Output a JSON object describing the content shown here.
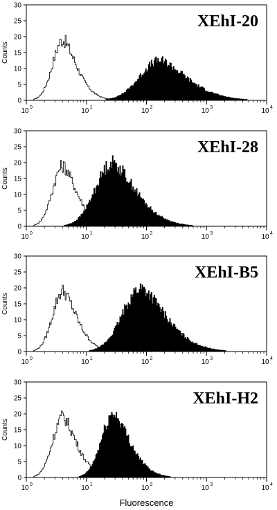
{
  "chart_data": [
    {
      "type": "histogram",
      "title": "XEhI-20",
      "ylabel": "Counts",
      "xlabel": "",
      "xscale": "log",
      "xlim": [
        1,
        10000
      ],
      "ylim": [
        0,
        30
      ],
      "yticks": [
        "0",
        "5",
        "10",
        "15",
        "20",
        "25",
        "30"
      ],
      "xticks": [
        {
          "base": "10",
          "exp": "0"
        },
        {
          "base": "10",
          "exp": "1"
        },
        {
          "base": "10",
          "exp": "2"
        },
        {
          "base": "10",
          "exp": "3"
        },
        {
          "base": "10",
          "exp": "4"
        }
      ],
      "series": [
        {
          "style": "outline",
          "peak_x": 4,
          "peak_count": 19,
          "log_width": 0.17
        },
        {
          "style": "filled",
          "peak_x": 165,
          "peak_count": 12.5,
          "log_width": 0.33
        }
      ]
    },
    {
      "type": "histogram",
      "title": "XEhI-28",
      "ylabel": "Counts",
      "xlabel": "",
      "xscale": "log",
      "xlim": [
        1,
        10000
      ],
      "ylim": [
        0,
        30
      ],
      "yticks": [
        "0",
        "5",
        "10",
        "15",
        "20",
        "25",
        "30"
      ],
      "xticks": [
        {
          "base": "10",
          "exp": "0"
        },
        {
          "base": "10",
          "exp": "1"
        },
        {
          "base": "10",
          "exp": "2"
        },
        {
          "base": "10",
          "exp": "3"
        },
        {
          "base": "10",
          "exp": "4"
        }
      ],
      "series": [
        {
          "style": "outline",
          "peak_x": 4,
          "peak_count": 19,
          "log_width": 0.17
        },
        {
          "style": "filled",
          "peak_x": 27,
          "peak_count": 20,
          "log_width": 0.28
        }
      ]
    },
    {
      "type": "histogram",
      "title": "XEhI-B5",
      "ylabel": "Counts",
      "xlabel": "",
      "xscale": "log",
      "xlim": [
        1,
        10000
      ],
      "ylim": [
        0,
        30
      ],
      "yticks": [
        "0",
        "5",
        "10",
        "15",
        "20",
        "25",
        "30"
      ],
      "xticks": [
        {
          "base": "10",
          "exp": "0"
        },
        {
          "base": "10",
          "exp": "1"
        },
        {
          "base": "10",
          "exp": "2"
        },
        {
          "base": "10",
          "exp": "3"
        },
        {
          "base": "10",
          "exp": "4"
        }
      ],
      "series": [
        {
          "style": "outline",
          "peak_x": 4,
          "peak_count": 19,
          "log_width": 0.17
        },
        {
          "style": "filled",
          "peak_x": 80,
          "peak_count": 20,
          "log_width": 0.3
        }
      ]
    },
    {
      "type": "histogram",
      "title": "XEhI-H2",
      "ylabel": "Counts",
      "xlabel": "Fluorescence",
      "xscale": "log",
      "xlim": [
        1,
        10000
      ],
      "ylim": [
        0,
        30
      ],
      "yticks": [
        "0",
        "5",
        "10",
        "15",
        "20",
        "25",
        "30"
      ],
      "xticks": [
        {
          "base": "10",
          "exp": "0"
        },
        {
          "base": "10",
          "exp": "1"
        },
        {
          "base": "10",
          "exp": "2"
        },
        {
          "base": "10",
          "exp": "3"
        },
        {
          "base": "10",
          "exp": "4"
        }
      ],
      "series": [
        {
          "style": "outline",
          "peak_x": 4,
          "peak_count": 19,
          "log_width": 0.17
        },
        {
          "style": "filled",
          "peak_x": 28,
          "peak_count": 20,
          "log_width": 0.2
        }
      ]
    }
  ]
}
